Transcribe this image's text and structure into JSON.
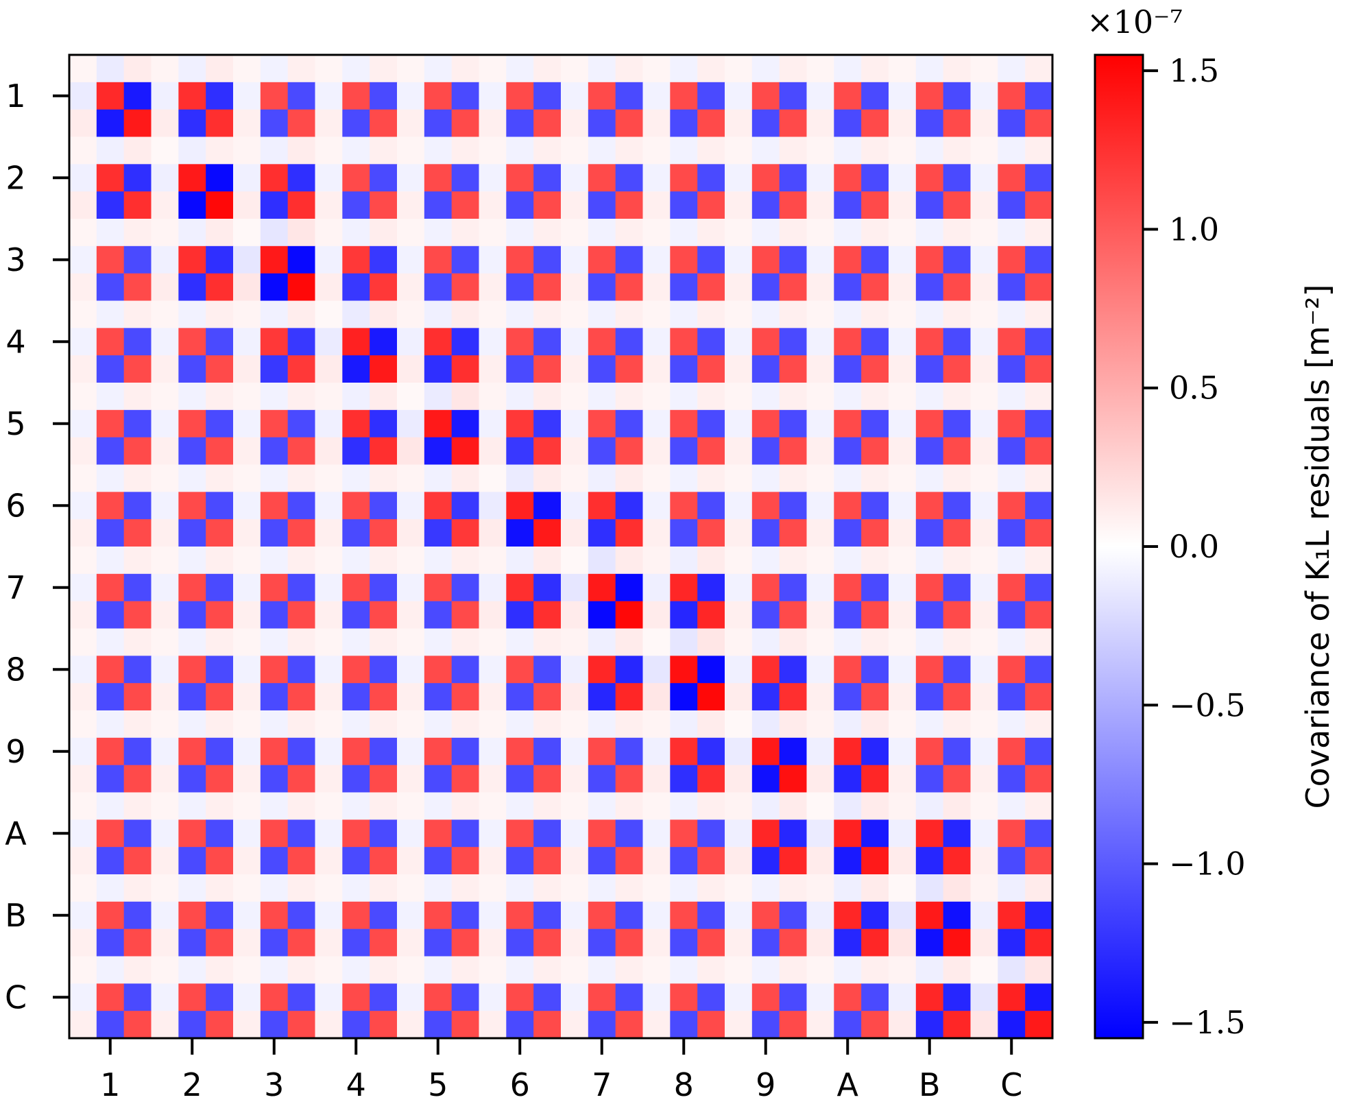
{
  "chart_data": {
    "type": "heatmap",
    "title": "",
    "xlabel": "",
    "ylabel": "",
    "x_tick_labels": [
      "1",
      "2",
      "3",
      "4",
      "5",
      "6",
      "7",
      "8",
      "9",
      "A",
      "B",
      "C"
    ],
    "y_tick_labels": [
      "1",
      "2",
      "3",
      "4",
      "5",
      "6",
      "7",
      "8",
      "9",
      "A",
      "B",
      "C"
    ],
    "grid_size": 36,
    "cells_per_group": 3,
    "block_values_x1e-7": {
      "within_group_pattern": [
        [
          0.06,
          -0.08,
          0.1
        ],
        [
          -0.08,
          1.1,
          -1.1
        ],
        [
          0.1,
          -1.1,
          1.1
        ]
      ],
      "diagonal_blocks": [
        [
          [
            0.06,
            -0.12,
            0.12
          ],
          [
            -0.12,
            1.3,
            -1.4
          ],
          [
            0.12,
            -1.4,
            1.4
          ]
        ],
        [
          [
            0.04,
            -0.1,
            0.1
          ],
          [
            -0.1,
            1.4,
            -1.5
          ],
          [
            0.1,
            -1.5,
            1.5
          ]
        ],
        [
          [
            0.04,
            -0.15,
            0.15
          ],
          [
            -0.15,
            1.4,
            -1.5
          ],
          [
            0.15,
            -1.5,
            1.5
          ]
        ],
        [
          [
            0.04,
            -0.12,
            0.12
          ],
          [
            -0.12,
            1.35,
            -1.4
          ],
          [
            0.12,
            -1.4,
            1.4
          ]
        ],
        [
          [
            0.04,
            -0.12,
            0.15
          ],
          [
            -0.12,
            1.4,
            -1.4
          ],
          [
            0.15,
            -1.4,
            1.4
          ]
        ],
        [
          [
            0.04,
            -0.12,
            0.12
          ],
          [
            -0.12,
            1.35,
            -1.45
          ],
          [
            0.12,
            -1.45,
            1.4
          ]
        ],
        [
          [
            0.04,
            -0.15,
            0.12
          ],
          [
            -0.15,
            1.4,
            -1.5
          ],
          [
            0.12,
            -1.5,
            1.5
          ]
        ],
        [
          [
            0.04,
            -0.15,
            0.15
          ],
          [
            -0.15,
            1.45,
            -1.5
          ],
          [
            0.15,
            -1.5,
            1.5
          ]
        ],
        [
          [
            0.04,
            -0.12,
            0.12
          ],
          [
            -0.12,
            1.4,
            -1.45
          ],
          [
            0.12,
            -1.45,
            1.45
          ]
        ],
        [
          [
            0.04,
            -0.12,
            0.12
          ],
          [
            -0.12,
            1.35,
            -1.4
          ],
          [
            0.12,
            -1.4,
            1.4
          ]
        ],
        [
          [
            0.04,
            -0.15,
            0.15
          ],
          [
            -0.15,
            1.4,
            -1.45
          ],
          [
            0.15,
            -1.45,
            1.45
          ]
        ],
        [
          [
            0.04,
            -0.15,
            0.15
          ],
          [
            -0.15,
            1.35,
            -1.4
          ],
          [
            0.15,
            -1.4,
            1.4
          ]
        ]
      ],
      "strong_off_diagonal_pairs": [
        {
          "groups": [
            1,
            2
          ],
          "scale": 1.15
        },
        {
          "groups": [
            2,
            3
          ],
          "scale": 1.15
        },
        {
          "groups": [
            3,
            4
          ],
          "scale": 1.1
        },
        {
          "groups": [
            4,
            5
          ],
          "scale": 1.15
        },
        {
          "groups": [
            5,
            6
          ],
          "scale": 1.1
        },
        {
          "groups": [
            6,
            7
          ],
          "scale": 1.15
        },
        {
          "groups": [
            7,
            8
          ],
          "scale": 1.2
        },
        {
          "groups": [
            8,
            9
          ],
          "scale": 1.15
        },
        {
          "groups": [
            9,
            10
          ],
          "scale": 1.2
        },
        {
          "groups": [
            10,
            11
          ],
          "scale": 1.2
        },
        {
          "groups": [
            11,
            12
          ],
          "scale": 1.2
        }
      ]
    },
    "colorbar": {
      "colormap": "bwr",
      "vmin": -1.55,
      "vmax": 1.55,
      "ticks": [
        1.5,
        1.0,
        0.5,
        0.0,
        -0.5,
        -1.0,
        -1.5
      ],
      "tick_labels": [
        "1.5",
        "1.0",
        "0.5",
        "0.0",
        "−0.5",
        "−1.0",
        "−1.5"
      ],
      "multiplier": "×10⁻⁷",
      "label": "Covariance of K₁L residuals [m⁻²]"
    },
    "colors": {
      "low": "#0000ff",
      "mid": "#ffffff",
      "high": "#ff0000"
    }
  }
}
